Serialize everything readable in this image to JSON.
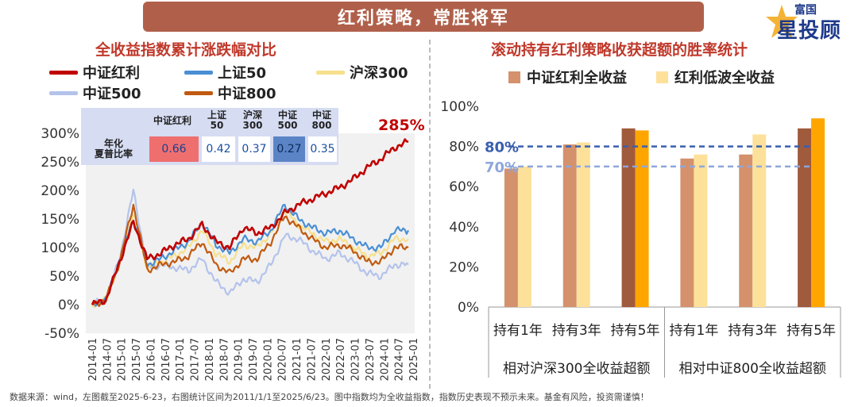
{
  "banner": {
    "title": "红利策略，常胜将军"
  },
  "logo": {
    "top": "富国",
    "main": "星投顾"
  },
  "left_chart": {
    "title": "全收益指数累计涨跌幅对比",
    "legend": [
      {
        "name": "中证红利",
        "color": "#c00000"
      },
      {
        "name": "上证50",
        "color": "#4a8fd4"
      },
      {
        "name": "沪深300",
        "color": "#f7e08c"
      },
      {
        "name": "中证500",
        "color": "#b4c3ec"
      },
      {
        "name": "中证800",
        "color": "#c05a10"
      }
    ],
    "annotation": "285%",
    "sharpe_table": {
      "row_label": "年化\n夏普比率",
      "headers": [
        "中证红利",
        "上证\n50",
        "沪深\n300",
        "中证\n500",
        "中证\n800"
      ],
      "values": [
        "0.66",
        "0.42",
        "0.37",
        "0.27",
        "0.35"
      ],
      "cell_colors": [
        "#ef6f6f",
        "#ffffff",
        "#ffffff",
        "#5b84c6",
        "#ffffff"
      ]
    }
  },
  "right_chart": {
    "title": "滚动持有红利策略收获超额的胜率统计",
    "legend": [
      {
        "name": "中证红利全收益",
        "color": "#d4916c"
      },
      {
        "name": "红利低波全收益",
        "color": "#fde19a"
      }
    ],
    "ref_lines": [
      {
        "label": "80%",
        "value": 80,
        "color": "#3a5fb0"
      },
      {
        "label": "70%",
        "value": 70,
        "color": "#8ea6dc"
      }
    ],
    "group_labels": [
      "相对沪深300全收益超额",
      "相对中证800全收益超额"
    ]
  },
  "chart_data": [
    {
      "type": "line",
      "title": "全收益指数累计涨跌幅对比",
      "x": [
        "2014-01",
        "2014-07",
        "2015-01",
        "2015-07",
        "2016-01",
        "2016-07",
        "2017-01",
        "2017-07",
        "2018-01",
        "2018-07",
        "2019-01",
        "2019-07",
        "2020-01",
        "2020-07",
        "2021-01",
        "2021-07",
        "2022-01",
        "2022-07",
        "2023-01",
        "2023-07",
        "2024-01",
        "2024-07",
        "2025-01",
        "2025-06"
      ],
      "x_ticks": [
        "2014-01",
        "2014-07",
        "2015-01",
        "2015-07",
        "2016-01",
        "2016-07",
        "2017-01",
        "2017-07",
        "2018-01",
        "2018-07",
        "2019-01",
        "2019-07",
        "2020-01",
        "2020-07",
        "2021-01",
        "2021-07",
        "2022-01",
        "2022-07",
        "2023-01",
        "2023-07",
        "2024-01",
        "2024-07",
        "2025-01"
      ],
      "y_ticks": [
        "300%",
        "250%",
        "200%",
        "150%",
        "100%",
        "50%",
        "0%",
        "-50%"
      ],
      "ylim": [
        -50,
        300
      ],
      "series": [
        {
          "name": "中证红利",
          "values": [
            0,
            8,
            75,
            145,
            80,
            90,
            105,
            115,
            140,
            110,
            100,
            135,
            125,
            135,
            160,
            175,
            185,
            195,
            205,
            220,
            240,
            255,
            275,
            285
          ]
        },
        {
          "name": "上证50",
          "values": [
            0,
            8,
            80,
            150,
            70,
            80,
            95,
            110,
            145,
            105,
            90,
            115,
            110,
            130,
            175,
            150,
            135,
            125,
            130,
            115,
            100,
            100,
            130,
            130
          ]
        },
        {
          "name": "沪深300",
          "values": [
            0,
            8,
            75,
            160,
            65,
            75,
            85,
            100,
            130,
            90,
            75,
            105,
            100,
            125,
            165,
            140,
            125,
            110,
            115,
            100,
            85,
            90,
            115,
            115
          ]
        },
        {
          "name": "中证500",
          "values": [
            0,
            10,
            80,
            200,
            65,
            70,
            65,
            60,
            80,
            40,
            20,
            45,
            40,
            70,
            120,
            115,
            95,
            80,
            90,
            75,
            55,
            50,
            70,
            70
          ]
        },
        {
          "name": "中证800",
          "values": [
            0,
            8,
            75,
            175,
            60,
            70,
            75,
            85,
            110,
            70,
            55,
            80,
            80,
            110,
            155,
            135,
            115,
            100,
            105,
            95,
            75,
            75,
            100,
            100
          ]
        }
      ]
    },
    {
      "type": "bar",
      "title": "滚动持有红利策略收获超额的胜率统计",
      "categories": [
        "持有1年",
        "持有3年",
        "持有5年",
        "持有1年",
        "持有3年",
        "持有5年"
      ],
      "groups": [
        "相对沪深300全收益超额",
        "相对中证800全收益超额"
      ],
      "ylim": [
        0,
        100
      ],
      "y_ticks": [
        "100%",
        "80%",
        "60%",
        "40%",
        "20%",
        "0%"
      ],
      "series": [
        {
          "name": "中证红利全收益",
          "values": [
            69,
            81,
            89,
            74,
            76,
            89
          ]
        },
        {
          "name": "红利低波全收益",
          "values": [
            70,
            82,
            88,
            76,
            86,
            94
          ]
        }
      ],
      "highlight_color_year5": [
        "#a05a3c",
        "#ffa500"
      ]
    }
  ],
  "footnote": "数据来源：wind，左图截至2025-6-23，右图统计区间为2011/1/1至2025/6/23。图中指数均为全收益指数，指数历史表现不预示未来。基金有风险，投资需谨慎！"
}
